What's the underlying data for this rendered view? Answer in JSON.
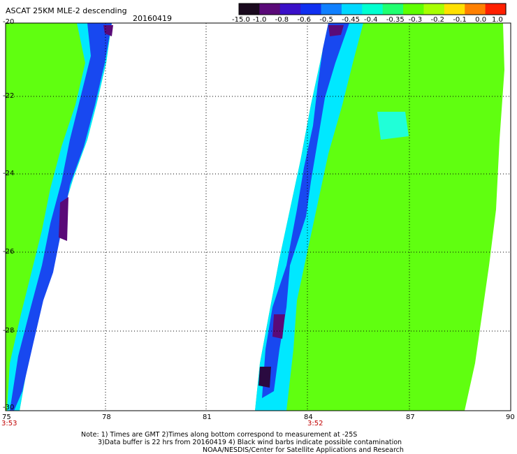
{
  "header": {
    "title": "ASCAT 25KM MLE-2 descending",
    "date": "20160419"
  },
  "colorbar": {
    "labels": [
      "-15.0",
      "-1.0",
      "-0.8",
      "-0.6",
      "-0.5",
      "-0.45",
      "-0.4",
      "-0.35",
      "-0.3",
      "-0.2",
      "-0.1",
      "0.0",
      "1.0"
    ],
    "colors": [
      "#1a0a1e",
      "#5a0a78",
      "#3a10c8",
      "#1030f0",
      "#1080ff",
      "#00d8ff",
      "#00ffd0",
      "#20ff70",
      "#60ff00",
      "#a8ff00",
      "#ffe000",
      "#ff8000",
      "#ff2000"
    ]
  },
  "axes": {
    "y_labels": [
      "-20",
      "-22",
      "-24",
      "-26",
      "-28",
      "-30"
    ],
    "x_labels": [
      "75",
      "78",
      "81",
      "84",
      "87",
      "90"
    ]
  },
  "pass_times": [
    "3:53",
    "3:52"
  ],
  "notes": [
    "Note: 1) Times are GMT 2)Times along bottom correspond to measurement at -25S",
    "3)Data buffer is 22 hrs from 20160419 4) Black wind barbs indicate possible contamination",
    "NOAA/NESDIS/Center for Satellite Applications and Research"
  ]
}
